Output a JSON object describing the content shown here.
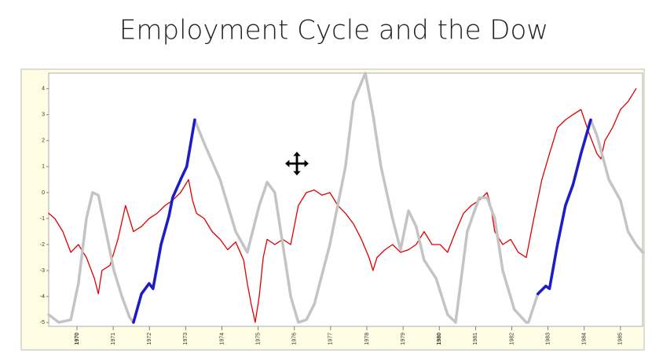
{
  "chart_data": {
    "type": "line",
    "title": "Employment Cycle and the Dow",
    "xlim": [
      1969.22,
      1985.61
    ],
    "ylim": [
      -5.15,
      4.6
    ],
    "xticks": [
      1970,
      1971,
      1972,
      1973,
      1974,
      1975,
      1976,
      1977,
      1978,
      1979,
      1980,
      1981,
      1982,
      1983,
      1984,
      1985
    ],
    "xtick_colors": [
      "#c00000",
      "#333333",
      "#333333",
      "#333333",
      "#333333",
      "#333333",
      "#333333",
      "#333333",
      "#333333",
      "#333333",
      "#c00000",
      "#333333",
      "#333333",
      "#333333",
      "#333333",
      "#333333"
    ],
    "yticks": [
      -5,
      -4,
      -3,
      -2,
      -1,
      0,
      1,
      2,
      3,
      4
    ],
    "series": [
      {
        "color": "#e00000",
        "width": 1.3,
        "x": [
          1969.22,
          1969.39,
          1969.61,
          1969.83,
          1970.04,
          1970.26,
          1970.48,
          1970.59,
          1970.69,
          1970.91,
          1971.13,
          1971.34,
          1971.56,
          1971.78,
          1971.99,
          1972.21,
          1972.43,
          1972.64,
          1972.86,
          1973.08,
          1973.19,
          1973.3,
          1973.51,
          1973.73,
          1973.95,
          1974.16,
          1974.38,
          1974.6,
          1974.7,
          1974.81,
          1974.92,
          1975.03,
          1975.14,
          1975.25,
          1975.46,
          1975.68,
          1975.9,
          1976.11,
          1976.33,
          1976.55,
          1976.76,
          1976.98,
          1977.2,
          1977.41,
          1977.63,
          1977.85,
          1978.06,
          1978.17,
          1978.28,
          1978.5,
          1978.71,
          1978.93,
          1979.15,
          1979.36,
          1979.58,
          1979.8,
          1980.02,
          1980.23,
          1980.45,
          1980.67,
          1980.88,
          1981.1,
          1981.32,
          1981.42,
          1981.53,
          1981.75,
          1981.97,
          1982.18,
          1982.4,
          1982.61,
          1982.83,
          1983.04,
          1983.26,
          1983.48,
          1983.69,
          1983.91,
          1984.13,
          1984.35,
          1984.46,
          1984.57,
          1984.78,
          1985.0,
          1985.21,
          1985.43
        ],
        "values": [
          -0.8,
          -1,
          -1.5,
          -2.3,
          -2,
          -2.5,
          -3.3,
          -3.9,
          -3,
          -2.8,
          -1.8,
          -0.5,
          -1.5,
          -1.3,
          -1,
          -0.8,
          -0.5,
          -0.3,
          0,
          0.5,
          -0.3,
          -0.8,
          -1,
          -1.5,
          -1.8,
          -2.2,
          -1.9,
          -2.6,
          -3.5,
          -4.3,
          -5,
          -4,
          -2.5,
          -1.8,
          -2,
          -1.8,
          -2,
          -0.5,
          0,
          0.1,
          -0.1,
          0,
          -0.5,
          -0.8,
          -1.2,
          -1.8,
          -2.5,
          -3,
          -2.5,
          -2.2,
          -2,
          -2.3,
          -2.2,
          -2,
          -1.5,
          -2,
          -2,
          -2.3,
          -1.5,
          -0.8,
          -0.5,
          -0.3,
          0,
          -0.5,
          -1.5,
          -2,
          -1.8,
          -2.3,
          -2.5,
          -1,
          0.5,
          1.5,
          2.5,
          2.8,
          3,
          3.2,
          2.3,
          1.5,
          1.3,
          2,
          2.5,
          3.2,
          3.5,
          4
        ]
      },
      {
        "color": "#c4c4c4",
        "width": 3.5,
        "x": [
          1969.22,
          1969.5,
          1969.83,
          1970.04,
          1970.26,
          1970.43,
          1970.59,
          1970.8,
          1971.02,
          1971.24,
          1971.45,
          1971.56,
          1971.78,
          1971.99,
          1972.1,
          1972.32,
          1972.54,
          1972.64,
          1972.86,
          1973.03,
          1973.25,
          1973.51,
          1973.95,
          1974.38,
          1974.7,
          1975.03,
          1975.25,
          1975.46,
          1975.68,
          1975.9,
          1976.11,
          1976.33,
          1976.55,
          1976.98,
          1977.41,
          1977.63,
          1977.96,
          1978.17,
          1978.39,
          1978.71,
          1978.93,
          1979.15,
          1979.36,
          1979.58,
          1979.91,
          1980.23,
          1980.45,
          1980.77,
          1981.1,
          1981.32,
          1981.53,
          1981.75,
          1982.07,
          1982.4,
          1982.46,
          1982.72,
          1982.94,
          1983.04,
          1983.26,
          1983.48,
          1983.69,
          1983.91,
          1984.18,
          1984.35,
          1984.68,
          1985.0,
          1985.21,
          1985.43,
          1985.61
        ],
        "values": [
          -4.7,
          -5,
          -4.9,
          -3.5,
          -1,
          0,
          -0.1,
          -1.5,
          -3,
          -4,
          -4.8,
          -5,
          -3.9,
          -3.5,
          -3.7,
          -2,
          -0.9,
          -0.2,
          0.5,
          1,
          2.8,
          1.9,
          0.5,
          -1.5,
          -2.3,
          -0.5,
          0.4,
          0,
          -2,
          -4,
          -5,
          -4.9,
          -4.3,
          -2,
          1,
          3.5,
          4.6,
          3,
          1,
          -1,
          -2.2,
          -0.7,
          -1.3,
          -2.6,
          -3.3,
          -4.7,
          -5,
          -1.5,
          -0.2,
          -0.2,
          -1,
          -3,
          -4.5,
          -5,
          -5,
          -3.9,
          -3.6,
          -3.7,
          -2,
          -0.5,
          0.3,
          1.5,
          2.8,
          2.2,
          0.5,
          -0.3,
          -1.5,
          -2,
          -2.3
        ]
      },
      {
        "color": "#1c1cc8",
        "width": 3.5,
        "x": [
          1971.56,
          1971.78,
          1971.99,
          1972.1,
          1972.32,
          1972.54,
          1972.64,
          1972.86,
          1973.03,
          1973.25,
          1982.46,
          1982.72,
          1982.94,
          1983.04,
          1983.26,
          1983.48,
          1983.69,
          1983.91,
          1984.18
        ],
        "values": [
          -5,
          -3.9,
          -3.5,
          -3.7,
          -2,
          -0.9,
          -0.2,
          0.5,
          1,
          2.8,
          null,
          -3.9,
          -3.6,
          -3.7,
          -2,
          -0.5,
          0.3,
          1.5,
          2.8
        ]
      }
    ]
  }
}
